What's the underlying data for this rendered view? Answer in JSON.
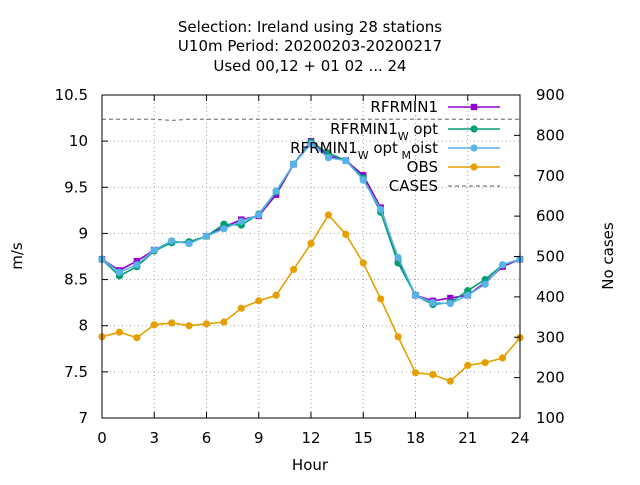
{
  "chart_data": {
    "type": "line",
    "title_lines": [
      "Selection: Ireland using    28 stations",
      "U10m   Period: 20200203-20200217",
      "Used  00,12  + 01 02 ... 24"
    ],
    "xlabel": "Hour",
    "ylabel": "m/s",
    "y2label": "No cases",
    "xlim": [
      0,
      24
    ],
    "ylim": [
      7,
      10.5
    ],
    "y2lim": [
      100,
      900
    ],
    "xticks": [
      "0",
      "3",
      "6",
      "9",
      "12",
      "15",
      "18",
      "21",
      "24"
    ],
    "yticks": [
      "7",
      "7.5",
      "8",
      "8.5",
      "9",
      "9.5",
      "10",
      "10.5"
    ],
    "y2ticks": [
      "100",
      "200",
      "300",
      "400",
      "500",
      "600",
      "700",
      "800",
      "900"
    ],
    "grid": true,
    "legend_position": "top-right",
    "x": [
      0,
      1,
      2,
      3,
      4,
      5,
      6,
      7,
      8,
      9,
      10,
      11,
      12,
      13,
      14,
      15,
      16,
      17,
      18,
      19,
      20,
      21,
      22,
      23,
      24
    ],
    "series": [
      {
        "name": "RFRMIN1",
        "color": "#9400d3",
        "marker": "square",
        "axis": "y1",
        "values": [
          8.72,
          8.6,
          8.7,
          8.82,
          8.91,
          8.9,
          8.97,
          9.07,
          9.15,
          9.19,
          9.42,
          9.75,
          10.0,
          9.84,
          9.79,
          9.63,
          9.28,
          8.7,
          8.33,
          8.27,
          8.3,
          8.33,
          8.47,
          8.64,
          8.72
        ]
      },
      {
        "name": "RFRMIN1_W opt",
        "label_main": "RFRMIN1",
        "label_sub": "W",
        "label_rest": "opt",
        "color": "#009e73",
        "marker": "circle",
        "axis": "y1",
        "values": [
          8.72,
          8.54,
          8.64,
          8.81,
          8.9,
          8.91,
          8.97,
          9.1,
          9.09,
          9.21,
          9.45,
          9.75,
          9.99,
          9.87,
          9.79,
          9.6,
          9.23,
          8.68,
          8.33,
          8.23,
          8.25,
          8.38,
          8.5,
          8.66,
          8.72
        ]
      },
      {
        "name": "RFRMIN1_W opt_M oist",
        "label_main": "RFRMIN1",
        "label_sub": "W",
        "label_rest": "opt",
        "label_sub2": "M",
        "label_rest2": "oist",
        "color": "#56b4e9",
        "marker": "circle",
        "axis": "y1",
        "values": [
          8.72,
          8.58,
          8.66,
          8.82,
          8.92,
          8.89,
          8.97,
          9.05,
          9.13,
          9.2,
          9.46,
          9.75,
          9.97,
          9.82,
          9.79,
          9.58,
          9.26,
          8.74,
          8.33,
          8.25,
          8.24,
          8.33,
          8.45,
          8.66,
          8.72
        ]
      },
      {
        "name": "OBS",
        "color": "#e69f00",
        "marker": "circle",
        "axis": "y1",
        "values": [
          7.88,
          7.93,
          7.87,
          8.01,
          8.03,
          8.0,
          8.02,
          8.04,
          8.19,
          8.27,
          8.33,
          8.61,
          8.89,
          9.2,
          8.99,
          8.68,
          8.29,
          7.88,
          7.49,
          7.47,
          7.4,
          7.57,
          7.6,
          7.65,
          7.87
        ]
      },
      {
        "name": "CASES",
        "color": "#808080",
        "marker": "none",
        "dashed": true,
        "axis": "y2",
        "values": [
          840,
          840,
          840,
          840,
          837,
          840,
          840,
          840,
          840,
          840,
          840,
          840,
          840,
          840,
          840,
          840,
          840,
          840,
          840,
          840,
          840,
          840,
          840,
          840,
          840
        ]
      }
    ]
  }
}
